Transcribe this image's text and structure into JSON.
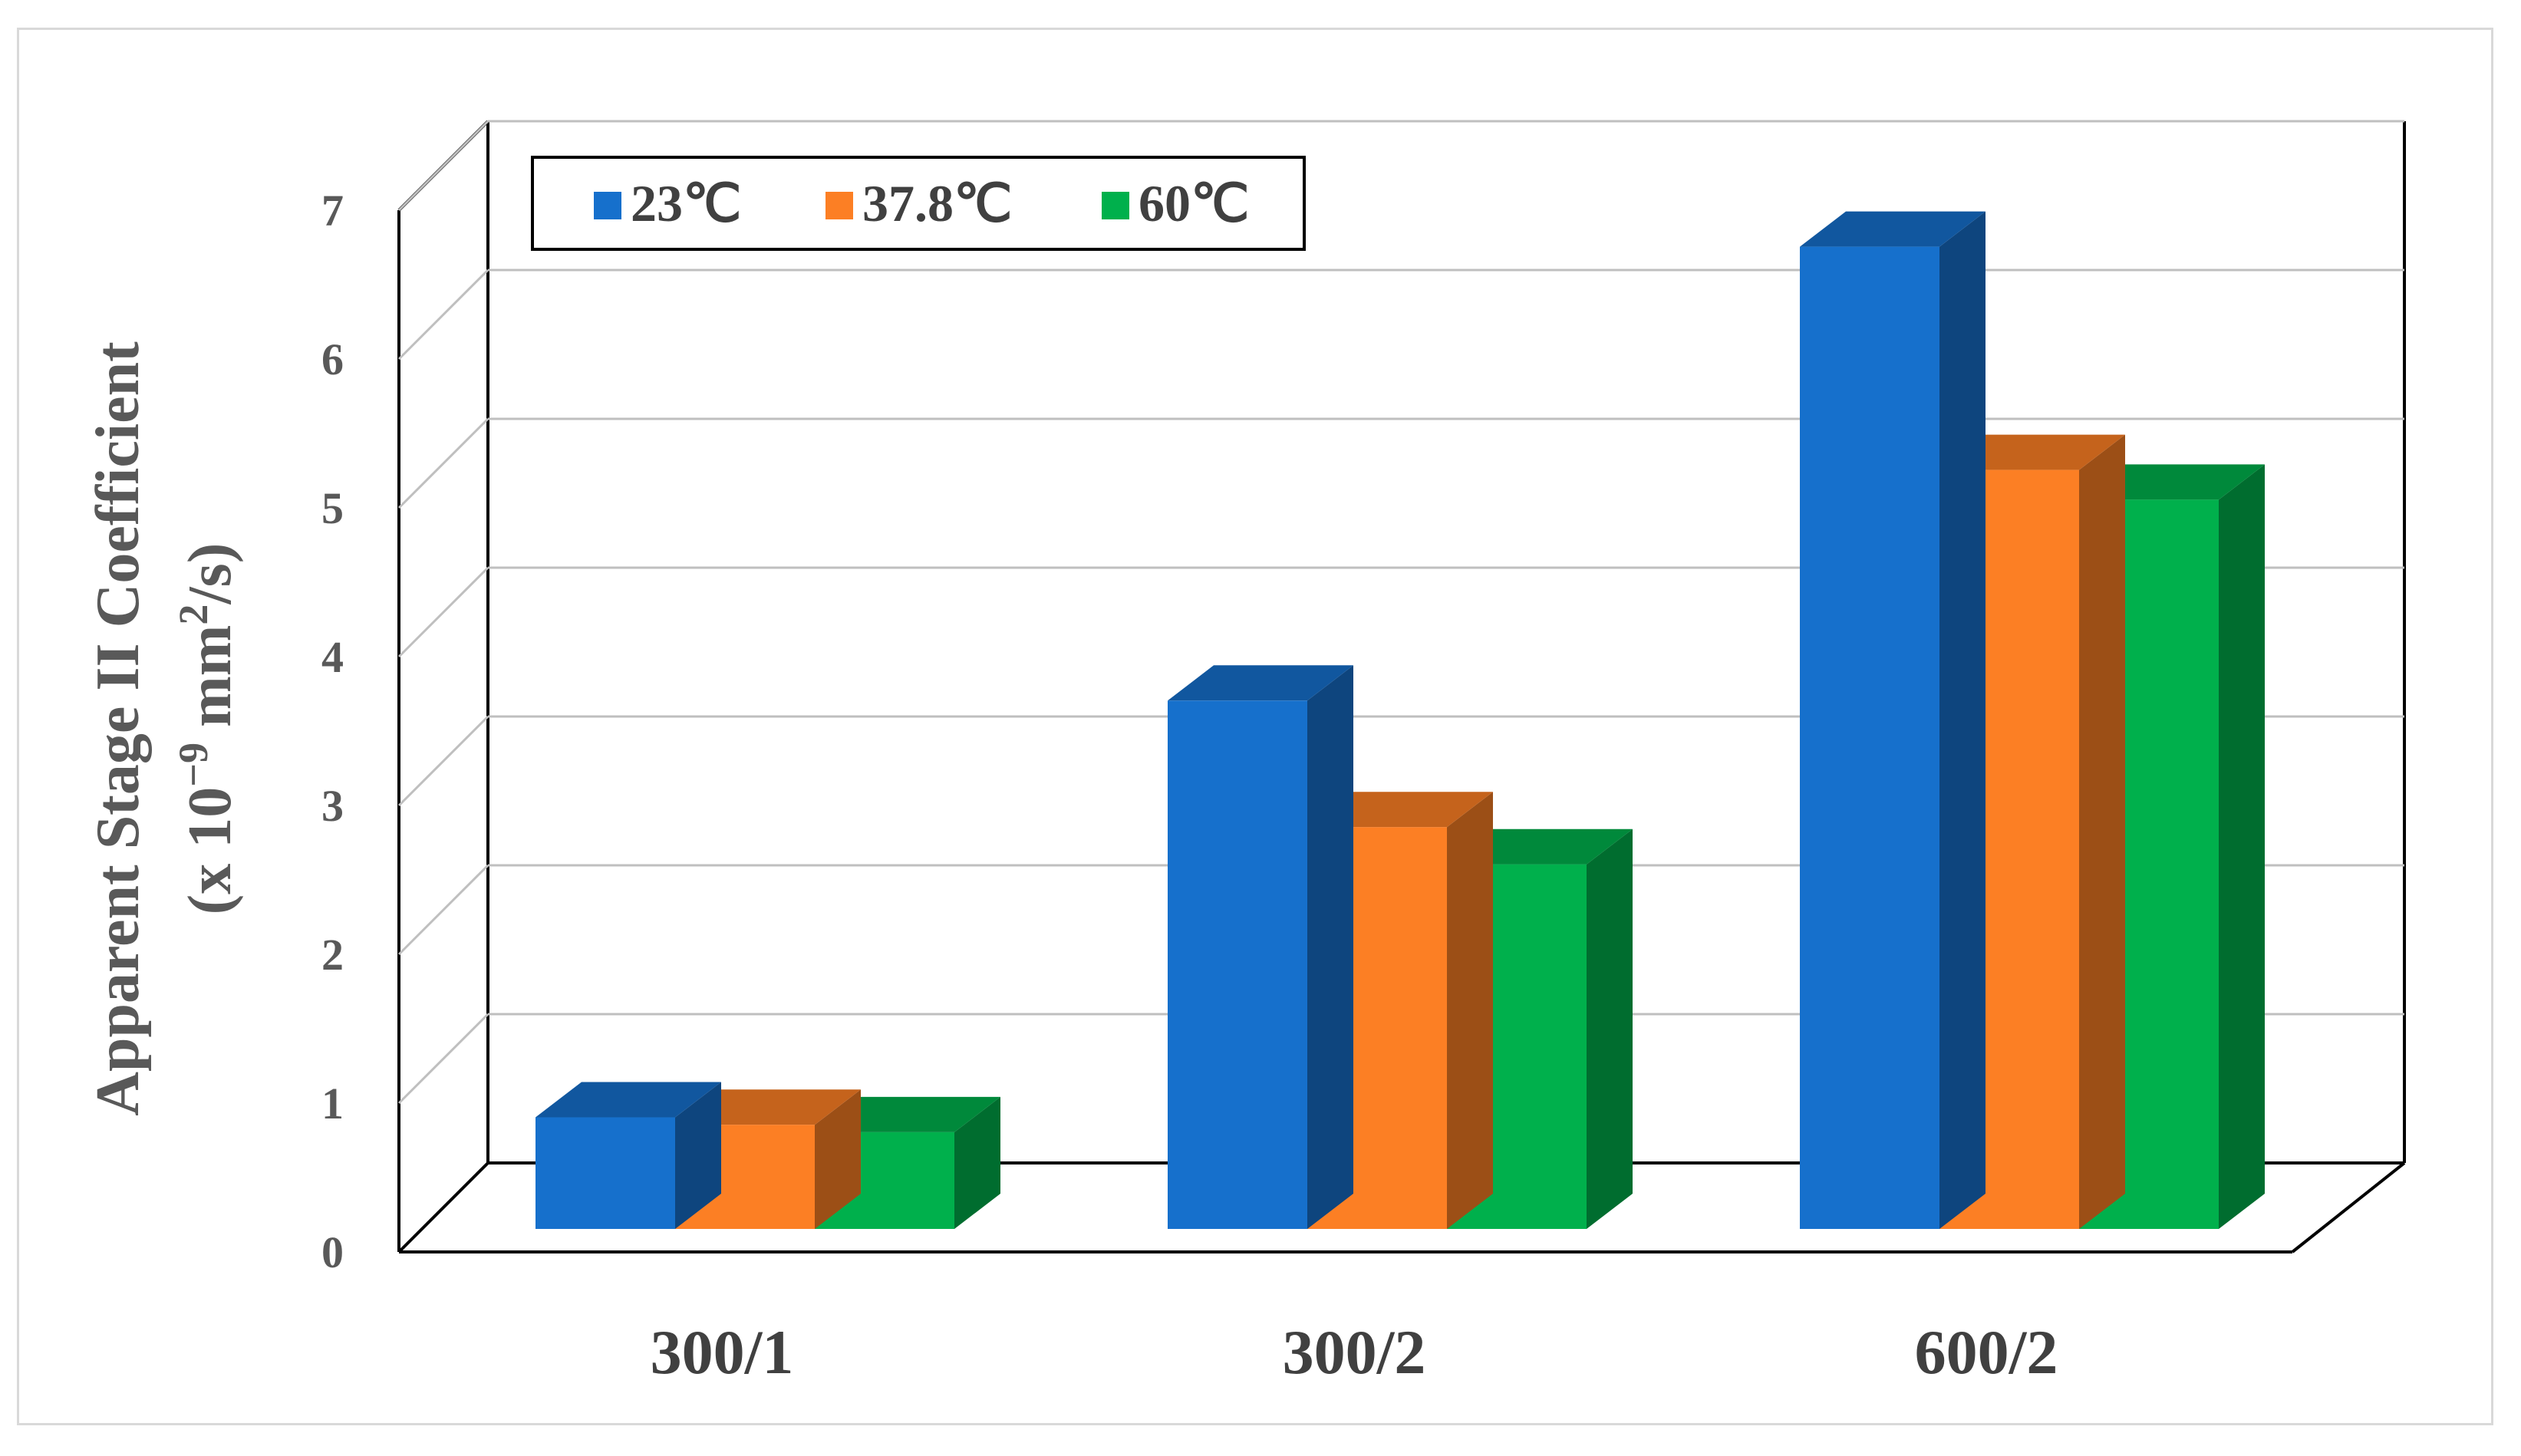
{
  "chart_data": {
    "type": "bar",
    "categories": [
      "300/1",
      "300/2",
      "600/2"
    ],
    "series": [
      {
        "name": "23℃",
        "values": [
          0.75,
          3.55,
          6.6
        ],
        "color": "#1670CC"
      },
      {
        "name": "37.8℃",
        "values": [
          0.7,
          2.7,
          5.1
        ],
        "color": "#FC7F24"
      },
      {
        "name": "60℃",
        "values": [
          0.65,
          2.45,
          4.9
        ],
        "color": "#00B04C"
      }
    ],
    "ylabel_line1": "Apparent Stage II Coefficient",
    "ylabel_line2_prefix": "(x 10",
    "ylabel_line2_exp": "−9",
    "ylabel_line2_mid": " mm",
    "ylabel_line2_exp2": "2",
    "ylabel_line2_suffix": "/s)",
    "yticks": [
      "0",
      "1",
      "2",
      "3",
      "4",
      "5",
      "6",
      "7"
    ],
    "ylim": [
      0,
      7
    ],
    "grid": true,
    "legend_position": "top-left",
    "style": "3d-column"
  }
}
